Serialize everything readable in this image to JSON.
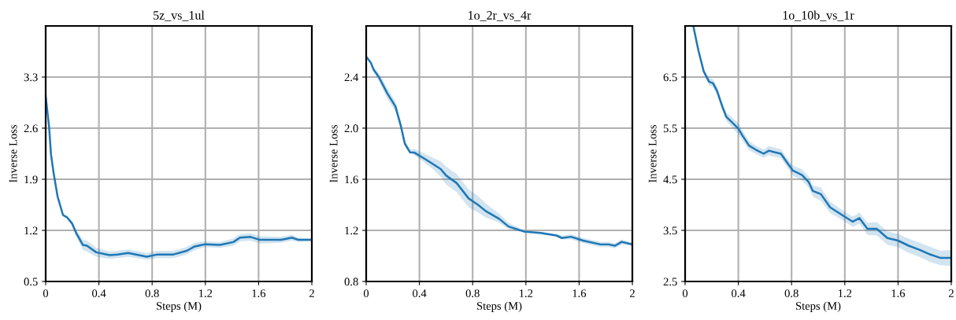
{
  "chart_data": [
    {
      "type": "line",
      "title": "5z_vs_1ul",
      "xlabel": "Steps (M)",
      "ylabel": "Inverse Loss",
      "xlim": [
        0,
        2
      ],
      "ylim": [
        0.5,
        4.0
      ],
      "xticks": [
        0,
        0.4,
        0.8,
        1.2,
        1.6,
        2
      ],
      "yticks": [
        0.5,
        1.2,
        1.9,
        2.6,
        3.3
      ],
      "grid": true,
      "series": [
        {
          "color": "#1f77b4",
          "x": [
            0,
            0.026,
            0.04,
            0.06,
            0.09,
            0.13,
            0.16,
            0.2,
            0.23,
            0.28,
            0.31,
            0.38,
            0.48,
            0.54,
            0.62,
            0.76,
            0.84,
            0.96,
            1.06,
            1.12,
            1.2,
            1.31,
            1.41,
            1.46,
            1.54,
            1.61,
            1.77,
            1.85,
            1.9,
            2.0
          ],
          "values": [
            3.04,
            2.61,
            2.24,
            1.98,
            1.66,
            1.41,
            1.38,
            1.29,
            1.16,
            1.0,
            0.99,
            0.9,
            0.86,
            0.87,
            0.89,
            0.84,
            0.87,
            0.87,
            0.92,
            0.98,
            1.01,
            1.0,
            1.04,
            1.1,
            1.11,
            1.07,
            1.07,
            1.1,
            1.07,
            1.07
          ],
          "lower": [
            3.02,
            2.59,
            2.22,
            1.96,
            1.64,
            1.39,
            1.36,
            1.26,
            1.11,
            0.93,
            0.91,
            0.84,
            0.81,
            0.82,
            0.84,
            0.8,
            0.82,
            0.82,
            0.87,
            0.93,
            0.97,
            0.96,
            0.99,
            1.05,
            1.06,
            1.02,
            1.03,
            1.06,
            1.04,
            1.05
          ],
          "upper": [
            3.06,
            2.63,
            2.26,
            2.0,
            1.68,
            1.43,
            1.4,
            1.32,
            1.21,
            1.07,
            1.06,
            0.96,
            0.91,
            0.92,
            0.94,
            0.89,
            0.92,
            0.92,
            0.97,
            1.03,
            1.05,
            1.04,
            1.09,
            1.15,
            1.16,
            1.12,
            1.11,
            1.14,
            1.1,
            1.09
          ]
        }
      ]
    },
    {
      "type": "line",
      "title": "1o_2r_vs_4r",
      "xlabel": "Steps (M)",
      "ylabel": "Inverse Loss",
      "xlim": [
        0,
        2
      ],
      "ylim": [
        0.8,
        2.8
      ],
      "xticks": [
        0,
        0.4,
        0.8,
        1.2,
        1.6,
        2
      ],
      "yticks": [
        0.8,
        1.2,
        1.6,
        {
          "value": 2,
          "label": "2.0"
        },
        2.4
      ],
      "grid": true,
      "series": [
        {
          "color": "#1f77b4",
          "x": [
            0,
            0.036,
            0.055,
            0.095,
            0.16,
            0.22,
            0.26,
            0.29,
            0.33,
            0.36,
            0.44,
            0.5,
            0.56,
            0.6,
            0.68,
            0.77,
            0.84,
            0.9,
            1.0,
            1.07,
            1.19,
            1.31,
            1.43,
            1.47,
            1.54,
            1.63,
            1.76,
            1.82,
            1.87,
            1.92,
            2.0
          ],
          "values": [
            2.56,
            2.51,
            2.46,
            2.4,
            2.27,
            2.17,
            2.02,
            1.88,
            1.81,
            1.81,
            1.76,
            1.72,
            1.68,
            1.63,
            1.57,
            1.45,
            1.4,
            1.35,
            1.29,
            1.23,
            1.19,
            1.18,
            1.16,
            1.14,
            1.15,
            1.12,
            1.09,
            1.09,
            1.08,
            1.11,
            1.09
          ],
          "lower": [
            2.55,
            2.5,
            2.44,
            2.37,
            2.23,
            2.13,
            1.99,
            1.86,
            1.8,
            1.79,
            1.73,
            1.68,
            1.62,
            1.56,
            1.5,
            1.38,
            1.34,
            1.3,
            1.26,
            1.21,
            1.18,
            1.17,
            1.15,
            1.13,
            1.13,
            1.1,
            1.07,
            1.07,
            1.06,
            1.09,
            1.08
          ],
          "upper": [
            2.57,
            2.53,
            2.48,
            2.43,
            2.31,
            2.21,
            2.05,
            1.9,
            1.83,
            1.84,
            1.8,
            1.77,
            1.74,
            1.7,
            1.64,
            1.52,
            1.47,
            1.41,
            1.33,
            1.26,
            1.2,
            1.19,
            1.17,
            1.16,
            1.17,
            1.14,
            1.11,
            1.11,
            1.1,
            1.13,
            1.1
          ]
        }
      ]
    },
    {
      "type": "line",
      "title": "1o_10b_vs_1r",
      "xlabel": "Steps (M)",
      "ylabel": "Inverse Loss",
      "xlim": [
        0,
        2
      ],
      "ylim": [
        2.5,
        7.5
      ],
      "xticks": [
        0,
        0.4,
        0.8,
        1.2,
        1.6,
        2
      ],
      "yticks": [
        2.5,
        3.5,
        4.5,
        5.5,
        6.5
      ],
      "grid": true,
      "series": [
        {
          "color": "#1f77b4",
          "x": [
            0.063,
            0.1,
            0.14,
            0.18,
            0.21,
            0.24,
            0.28,
            0.31,
            0.35,
            0.4,
            0.43,
            0.48,
            0.53,
            0.59,
            0.63,
            0.67,
            0.72,
            0.76,
            0.81,
            0.88,
            0.93,
            0.96,
            1.02,
            1.09,
            1.15,
            1.21,
            1.26,
            1.31,
            1.37,
            1.44,
            1.52,
            1.6,
            1.68,
            1.76,
            1.84,
            1.92,
            2.0
          ],
          "values": [
            7.48,
            7.02,
            6.61,
            6.41,
            6.38,
            6.23,
            5.92,
            5.72,
            5.62,
            5.49,
            5.36,
            5.16,
            5.08,
            5.0,
            5.06,
            5.03,
            5.0,
            4.85,
            4.67,
            4.58,
            4.44,
            4.27,
            4.21,
            3.95,
            3.85,
            3.75,
            3.67,
            3.74,
            3.53,
            3.53,
            3.35,
            3.3,
            3.2,
            3.12,
            3.03,
            2.96,
            2.96
          ],
          "lower": [
            7.46,
            6.99,
            6.57,
            6.34,
            6.3,
            6.15,
            5.85,
            5.64,
            5.52,
            5.38,
            5.26,
            5.07,
            5.0,
            4.92,
            4.97,
            4.94,
            4.91,
            4.76,
            4.57,
            4.47,
            4.33,
            4.16,
            4.08,
            3.84,
            3.75,
            3.65,
            3.57,
            3.63,
            3.41,
            3.4,
            3.22,
            3.17,
            3.06,
            2.98,
            2.88,
            2.82,
            2.8
          ],
          "upper": [
            7.5,
            7.05,
            6.65,
            6.48,
            6.46,
            6.31,
            5.99,
            5.8,
            5.72,
            5.6,
            5.46,
            5.25,
            5.16,
            5.08,
            5.15,
            5.12,
            5.09,
            4.94,
            4.77,
            4.69,
            4.55,
            4.38,
            4.34,
            4.06,
            3.95,
            3.85,
            3.77,
            3.85,
            3.65,
            3.66,
            3.48,
            3.43,
            3.34,
            3.26,
            3.18,
            3.1,
            3.12
          ]
        }
      ]
    }
  ]
}
